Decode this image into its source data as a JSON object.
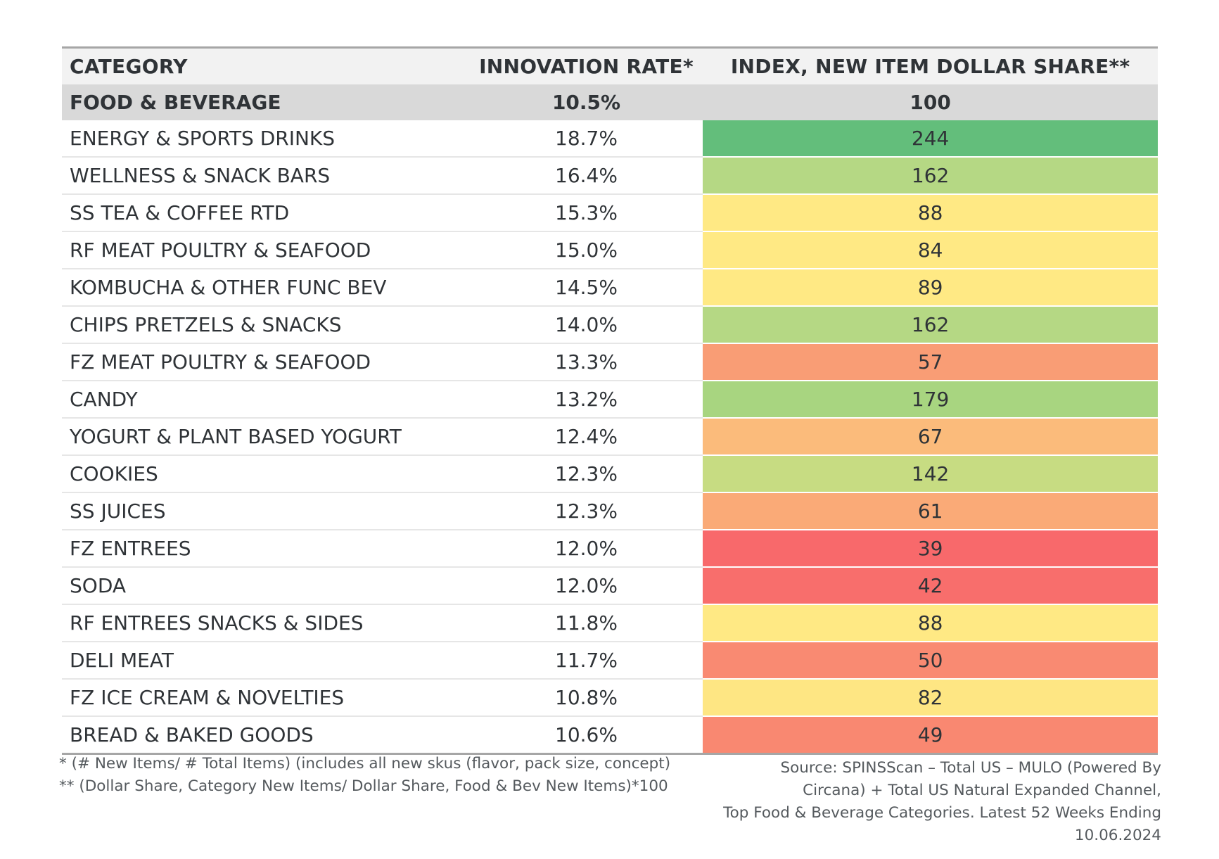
{
  "chart_data": {
    "type": "table",
    "columns": [
      "CATEGORY",
      "INNOVATION RATE*",
      "INDEX, NEW ITEM DOLLAR SHARE**"
    ],
    "total": {
      "category": "FOOD & BEVERAGE",
      "innovation_rate": "10.5%",
      "index": 100
    },
    "rows": [
      {
        "category": "ENERGY & SPORTS DRINKS",
        "innovation_rate": "18.7%",
        "index": 244,
        "color": "#63be7b"
      },
      {
        "category": "WELLNESS & SNACK BARS",
        "innovation_rate": "16.4%",
        "index": 162,
        "color": "#b5d884"
      },
      {
        "category": "SS TEA & COFFEE RTD",
        "innovation_rate": "15.3%",
        "index": 88,
        "color": "#ffe984"
      },
      {
        "category": "RF MEAT POULTRY & SEAFOOD",
        "innovation_rate": "15.0%",
        "index": 84,
        "color": "#ffe984"
      },
      {
        "category": "KOMBUCHA & OTHER FUNC BEV",
        "innovation_rate": "14.5%",
        "index": 89,
        "color": "#ffe984"
      },
      {
        "category": "CHIPS PRETZELS & SNACKS",
        "innovation_rate": "14.0%",
        "index": 162,
        "color": "#b5d884"
      },
      {
        "category": "FZ MEAT POULTRY & SEAFOOD",
        "innovation_rate": "13.3%",
        "index": 57,
        "color": "#f99d75"
      },
      {
        "category": "CANDY",
        "innovation_rate": "13.2%",
        "index": 179,
        "color": "#a8d580"
      },
      {
        "category": "YOGURT & PLANT BASED YOGURT",
        "innovation_rate": "12.4%",
        "index": 67,
        "color": "#fbbb7b"
      },
      {
        "category": "COOKIES",
        "innovation_rate": "12.3%",
        "index": 142,
        "color": "#c7dc82"
      },
      {
        "category": "SS JUICES",
        "innovation_rate": "12.3%",
        "index": 61,
        "color": "#faaa77"
      },
      {
        "category": "FZ ENTREES",
        "innovation_rate": "12.0%",
        "index": 39,
        "color": "#f8696b"
      },
      {
        "category": "SODA",
        "innovation_rate": "12.0%",
        "index": 42,
        "color": "#f86e6c"
      },
      {
        "category": "RF ENTREES SNACKS & SIDES",
        "innovation_rate": "11.8%",
        "index": 88,
        "color": "#ffe984"
      },
      {
        "category": "DELI MEAT",
        "innovation_rate": "11.7%",
        "index": 50,
        "color": "#f98a72"
      },
      {
        "category": "FZ ICE CREAM & NOVELTIES",
        "innovation_rate": "10.8%",
        "index": 82,
        "color": "#fee683"
      },
      {
        "category": "BREAD & BAKED GOODS",
        "innovation_rate": "10.6%",
        "index": 49,
        "color": "#f98871"
      }
    ]
  },
  "footnotes": {
    "line1": "* (# New Items/ # Total Items) (includes all new skus (flavor, pack size, concept)",
    "line2": "** (Dollar Share, Category New Items/ Dollar Share, Food & Bev New Items)*100"
  },
  "source": {
    "line1": "Source: SPINSScan – Total US – MULO (Powered By",
    "line2": "Circana) + Total US Natural Expanded Channel,",
    "line3": "Top Food & Beverage Categories. Latest 52 Weeks Ending",
    "line4": "10.06.2024"
  }
}
